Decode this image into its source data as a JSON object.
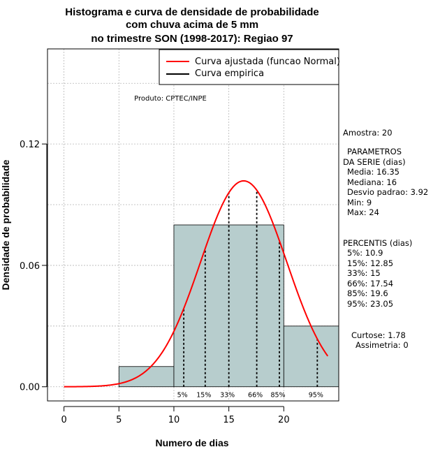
{
  "chart_data": {
    "type": "bar",
    "title_lines": [
      "Histograma e curva de densidade de probabilidade",
      "com chuva acima de 5 mm",
      "no trimestre SON (1998-2017): Regiao 97"
    ],
    "xlabel": "Numero de dias",
    "ylabel": "Densidade de probabilidade",
    "xlim": [
      -1.5,
      25
    ],
    "ylim": [
      -0.007,
      0.167
    ],
    "x_ticks": [
      0,
      5,
      10,
      15,
      20
    ],
    "y_ticks": [
      0.0,
      0.06,
      0.12
    ],
    "y_tick_labels": [
      "0.00",
      "0.06",
      "0.12"
    ],
    "grid": true,
    "histogram": {
      "bins": [
        [
          5,
          10
        ],
        [
          10,
          20
        ],
        [
          20,
          25
        ]
      ],
      "densities": [
        0.01,
        0.08,
        0.03
      ],
      "fill": "#b7cdcd",
      "edge": "#000000"
    },
    "normal_curve": {
      "mean": 16.35,
      "sd": 3.92,
      "x_range": [
        0,
        24
      ],
      "color": "#ff0000"
    },
    "percentile_lines": [
      {
        "label": "5%",
        "x": 10.9
      },
      {
        "label": "15%",
        "x": 12.85
      },
      {
        "label": "33%",
        "x": 15
      },
      {
        "label": "66%",
        "x": 17.54
      },
      {
        "label": "85%",
        "x": 19.6
      },
      {
        "label": "95%",
        "x": 23.05
      }
    ],
    "legend": {
      "position": "top-right",
      "entries": [
        {
          "label": "Curva ajustada (funcao Normal)",
          "color": "#ff0000"
        },
        {
          "label": "Curva empirica",
          "color": "#000000"
        }
      ]
    },
    "annotation": "Produto: CPTEC/INPE"
  },
  "side_panel": {
    "amostra": "Amostra: 20",
    "params_title_1": "PARAMETROS",
    "params_title_2": "DA SERIE (dias)",
    "media": "Media: 16.35",
    "mediana": "Mediana: 16",
    "desvio": "Desvio padrao: 3.92",
    "min": "Min: 9",
    "max": "Max: 24",
    "percentis_title": "PERCENTIS (dias)",
    "p5": "5%: 10.9",
    "p15": "15%: 12.85",
    "p33": "33%: 15",
    "p66": "66%: 17.54",
    "p85": "85%: 19.6",
    "p95": "95%: 23.05",
    "curtose": "Curtose: 1.78",
    "assimetria": "Assimetria: 0"
  }
}
